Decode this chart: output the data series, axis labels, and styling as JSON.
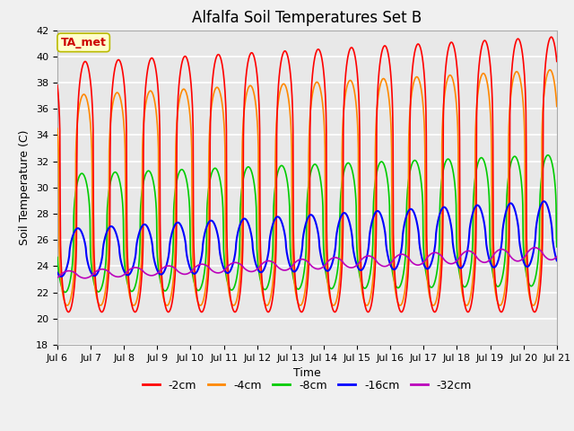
{
  "title": "Alfalfa Soil Temperatures Set B",
  "xlabel": "Time",
  "ylabel": "Soil Temperature (C)",
  "ylim": [
    18,
    42
  ],
  "yticks": [
    18,
    20,
    22,
    24,
    26,
    28,
    30,
    32,
    34,
    36,
    38,
    40,
    42
  ],
  "xtick_days": [
    6,
    7,
    8,
    9,
    10,
    11,
    12,
    13,
    14,
    15,
    16,
    17,
    18,
    19,
    20,
    21
  ],
  "line_colors": {
    "-2cm": "#ff0000",
    "-4cm": "#ff8800",
    "-8cm": "#00cc00",
    "-16cm": "#0000ff",
    "-32cm": "#bb00bb"
  },
  "line_widths": {
    "-2cm": 1.2,
    "-4cm": 1.2,
    "-8cm": 1.2,
    "-16cm": 1.5,
    "-32cm": 1.2
  },
  "legend_labels": [
    "-2cm",
    "-4cm",
    "-8cm",
    "-16cm",
    "-32cm"
  ],
  "annotation_text": "TA_met",
  "annotation_color": "#cc0000",
  "annotation_bg": "#ffffcc",
  "annotation_border": "#bbbb00",
  "plot_bg_color": "#e8e8e8",
  "fig_bg_color": "#f0f0f0",
  "grid_color": "#ffffff",
  "title_fontsize": 12,
  "axis_label_fontsize": 9,
  "tick_fontsize": 8
}
